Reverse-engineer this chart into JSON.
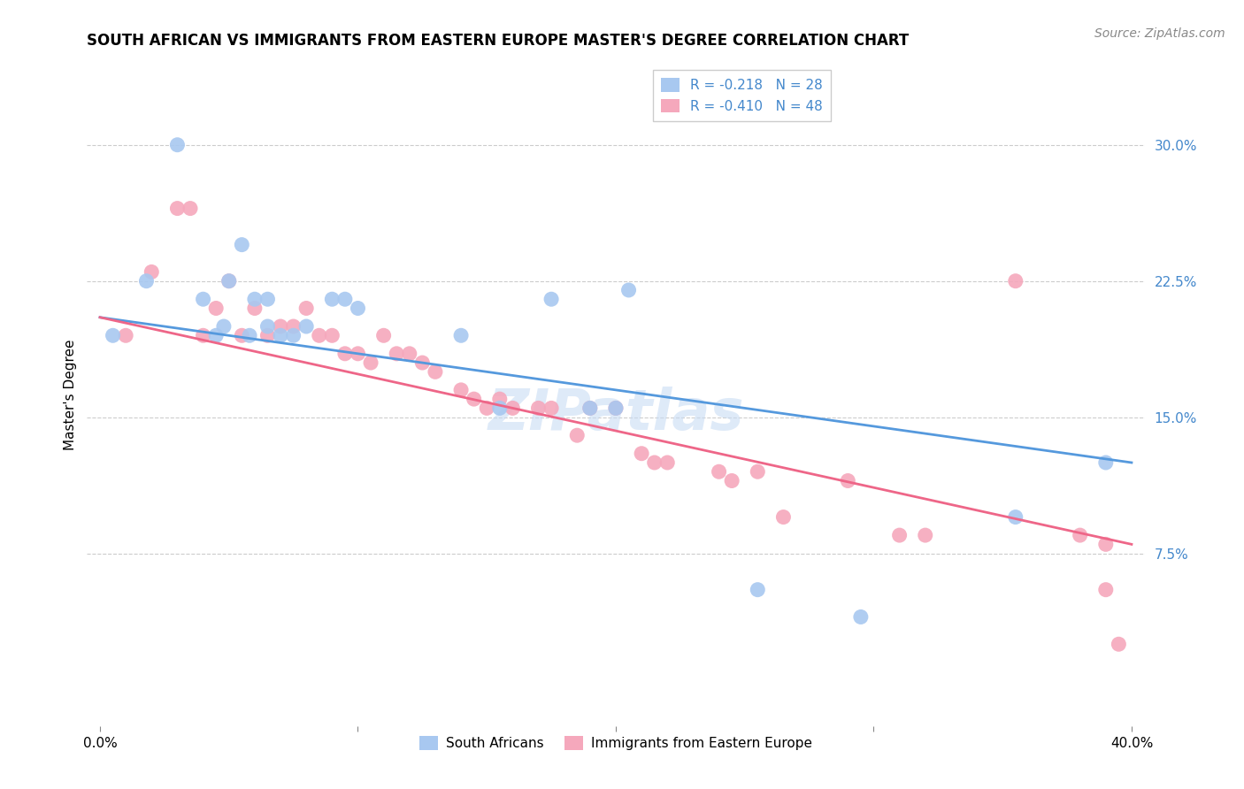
{
  "title": "SOUTH AFRICAN VS IMMIGRANTS FROM EASTERN EUROPE MASTER'S DEGREE CORRELATION CHART",
  "source": "Source: ZipAtlas.com",
  "ylabel": "Master's Degree",
  "yticks": [
    "7.5%",
    "15.0%",
    "22.5%",
    "30.0%"
  ],
  "ytick_vals": [
    0.075,
    0.15,
    0.225,
    0.3
  ],
  "xlim": [
    -0.005,
    0.405
  ],
  "ylim": [
    -0.02,
    0.345
  ],
  "legend_label1": "R = -0.218   N = 28",
  "legend_label2": "R = -0.410   N = 48",
  "legend_label_bottom1": "South Africans",
  "legend_label_bottom2": "Immigrants from Eastern Europe",
  "color_blue": "#a8c8f0",
  "color_pink": "#f5a8bc",
  "color_blue_line": "#5599dd",
  "color_pink_line": "#ee6688",
  "color_label_blue": "#4488cc",
  "watermark": "ZIPatlas",
  "blue_scatter_x": [
    0.005,
    0.018,
    0.03,
    0.04,
    0.045,
    0.048,
    0.05,
    0.055,
    0.058,
    0.06,
    0.065,
    0.065,
    0.07,
    0.075,
    0.08,
    0.09,
    0.095,
    0.1,
    0.14,
    0.155,
    0.175,
    0.19,
    0.2,
    0.205,
    0.255,
    0.295,
    0.355,
    0.39
  ],
  "blue_scatter_y": [
    0.195,
    0.225,
    0.3,
    0.215,
    0.195,
    0.2,
    0.225,
    0.245,
    0.195,
    0.215,
    0.215,
    0.2,
    0.195,
    0.195,
    0.2,
    0.215,
    0.215,
    0.21,
    0.195,
    0.155,
    0.215,
    0.155,
    0.155,
    0.22,
    0.055,
    0.04,
    0.095,
    0.125
  ],
  "pink_scatter_x": [
    0.01,
    0.02,
    0.03,
    0.035,
    0.04,
    0.045,
    0.05,
    0.055,
    0.06,
    0.065,
    0.07,
    0.075,
    0.08,
    0.085,
    0.09,
    0.095,
    0.1,
    0.105,
    0.11,
    0.115,
    0.12,
    0.125,
    0.13,
    0.14,
    0.145,
    0.15,
    0.155,
    0.16,
    0.17,
    0.175,
    0.185,
    0.19,
    0.2,
    0.21,
    0.215,
    0.22,
    0.24,
    0.245,
    0.255,
    0.265,
    0.29,
    0.31,
    0.32,
    0.355,
    0.38,
    0.39,
    0.39,
    0.395
  ],
  "pink_scatter_y": [
    0.195,
    0.23,
    0.265,
    0.265,
    0.195,
    0.21,
    0.225,
    0.195,
    0.21,
    0.195,
    0.2,
    0.2,
    0.21,
    0.195,
    0.195,
    0.185,
    0.185,
    0.18,
    0.195,
    0.185,
    0.185,
    0.18,
    0.175,
    0.165,
    0.16,
    0.155,
    0.16,
    0.155,
    0.155,
    0.155,
    0.14,
    0.155,
    0.155,
    0.13,
    0.125,
    0.125,
    0.12,
    0.115,
    0.12,
    0.095,
    0.115,
    0.085,
    0.085,
    0.225,
    0.085,
    0.08,
    0.055,
    0.025
  ],
  "blue_line_x": [
    0.0,
    0.4
  ],
  "blue_line_y": [
    0.205,
    0.125
  ],
  "pink_line_x": [
    0.0,
    0.4
  ],
  "pink_line_y": [
    0.205,
    0.08
  ],
  "grid_color": "#cccccc",
  "background_color": "#ffffff",
  "title_fontsize": 12,
  "axis_label_fontsize": 11,
  "tick_fontsize": 11,
  "source_fontsize": 10
}
